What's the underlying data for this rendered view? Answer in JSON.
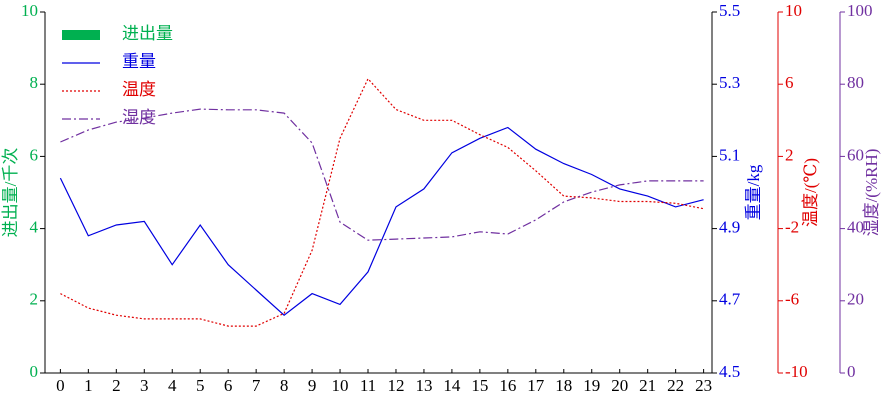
{
  "chart_data": {
    "type": "line",
    "x": [
      0,
      1,
      2,
      3,
      4,
      5,
      6,
      7,
      8,
      9,
      10,
      11,
      12,
      13,
      14,
      15,
      16,
      17,
      18,
      19,
      20,
      21,
      22,
      23
    ],
    "xlim": [
      -0.55,
      23.3
    ],
    "xticks": [
      0,
      1,
      2,
      3,
      4,
      5,
      6,
      7,
      8,
      9,
      10,
      11,
      12,
      13,
      14,
      15,
      16,
      17,
      18,
      19,
      20,
      21,
      22,
      23
    ],
    "ylabel": "进出量/千次",
    "ylim": [
      0,
      10
    ],
    "yticks": [
      0,
      2,
      4,
      6,
      8,
      10
    ],
    "y2label": "重量/kg",
    "y2lim": [
      4.5,
      5.5
    ],
    "y2ticks": [
      4.5,
      4.7,
      4.9,
      5.1,
      5.3,
      5.5
    ],
    "y3label": "温度/(℃)",
    "y3lim": [
      -10,
      10
    ],
    "y3ticks": [
      -10,
      -6,
      -2,
      2,
      6,
      10
    ],
    "y4label": "湿度/(%RH)",
    "y4lim": [
      0,
      100
    ],
    "y4ticks": [
      0,
      20,
      40,
      60,
      80,
      100
    ],
    "legend": "upper left",
    "grid": false,
    "series": [
      {
        "name": "进出量",
        "color": "#00b050",
        "style": "bar",
        "axis": "y",
        "values": [
          null,
          null,
          null,
          null,
          null,
          null,
          null,
          null,
          null,
          null,
          null,
          null,
          null,
          null,
          null,
          null,
          null,
          null,
          null,
          null,
          null,
          null,
          null,
          null
        ]
      },
      {
        "name": "重量",
        "color": "#0000e0",
        "style": "solid",
        "axis": "y2",
        "values": [
          5.04,
          4.88,
          4.91,
          4.92,
          4.8,
          4.91,
          4.8,
          4.73,
          4.66,
          4.72,
          4.69,
          4.78,
          4.96,
          5.01,
          5.11,
          5.15,
          5.18,
          5.12,
          5.08,
          5.05,
          5.01,
          4.99,
          4.96,
          4.98
        ]
      },
      {
        "name": "温度",
        "color": "#e00000",
        "style": "dotted",
        "axis": "y3",
        "values": [
          -5.6,
          -6.4,
          -6.8,
          -7.0,
          -7.0,
          -7.0,
          -7.4,
          -7.4,
          -6.7,
          -3.2,
          3.0,
          6.3,
          4.6,
          4.0,
          4.0,
          3.2,
          2.5,
          1.2,
          -0.2,
          -0.3,
          -0.5,
          -0.5,
          -0.6,
          -0.9
        ]
      },
      {
        "name": "湿度",
        "color": "#7030a0",
        "style": "dashdot",
        "axis": "y4",
        "values": [
          64,
          67.3,
          69.5,
          70.6,
          72,
          73.1,
          72.9,
          72.9,
          72,
          63.7,
          41.8,
          36.8,
          37.1,
          37.4,
          37.7,
          39.1,
          38.5,
          42.4,
          47.4,
          50.1,
          52.1,
          53.2,
          53.2,
          53.2
        ]
      }
    ]
  }
}
